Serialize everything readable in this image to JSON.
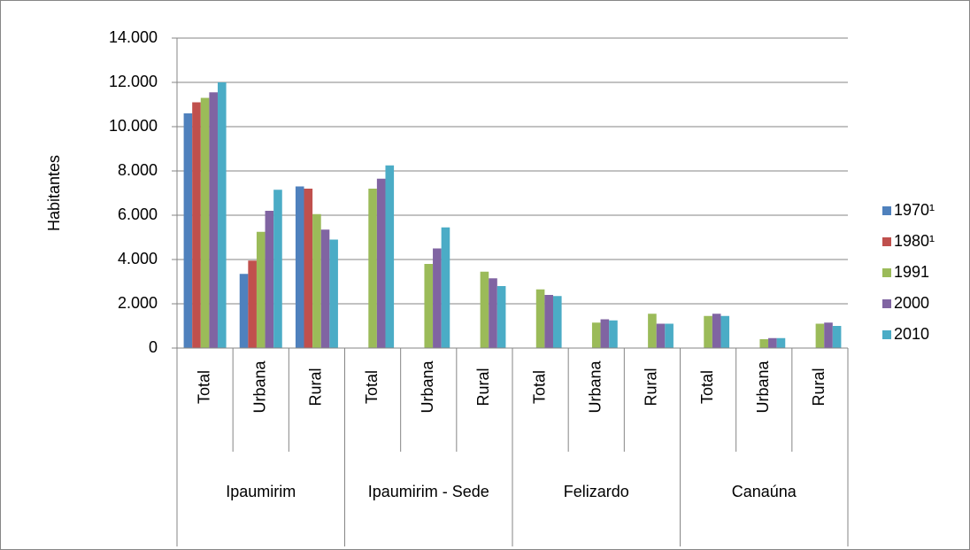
{
  "chart_data": {
    "type": "bar",
    "y_label": "Habitantes",
    "groups": [
      {
        "name": "Ipaumirim",
        "categories": [
          "Total",
          "Urbana",
          "Rural"
        ]
      },
      {
        "name": "Ipaumirim - Sede",
        "categories": [
          "Total",
          "Urbana",
          "Rural"
        ]
      },
      {
        "name": "Felizardo",
        "categories": [
          "Total",
          "Urbana",
          "Rural"
        ]
      },
      {
        "name": "Canaúna",
        "categories": [
          "Total",
          "Urbana",
          "Rural"
        ]
      }
    ],
    "series": [
      {
        "name": "1970¹",
        "color": "#4f81bd",
        "values": [
          10600,
          3350,
          7300,
          null,
          null,
          null,
          null,
          null,
          null,
          null,
          null,
          null
        ]
      },
      {
        "name": "1980¹",
        "color": "#c0504d",
        "values": [
          11100,
          3950,
          7200,
          null,
          null,
          null,
          null,
          null,
          null,
          null,
          null,
          null
        ]
      },
      {
        "name": "1991",
        "color": "#9bbb59",
        "values": [
          11300,
          5250,
          6050,
          7200,
          3800,
          3450,
          2650,
          1150,
          1550,
          1450,
          400,
          1100
        ]
      },
      {
        "name": "2000",
        "color": "#8064a2",
        "values": [
          11550,
          6200,
          5350,
          7650,
          4500,
          3150,
          2400,
          1300,
          1100,
          1550,
          450,
          1150
        ]
      },
      {
        "name": "2010",
        "color": "#4bacc6",
        "values": [
          12000,
          7150,
          4900,
          8250,
          5450,
          2800,
          2350,
          1250,
          1100,
          1450,
          450,
          1000
        ]
      }
    ],
    "ylim": [
      0,
      14000
    ],
    "yticks": [
      0,
      {
        "value": 2000,
        "label": "2.000"
      },
      {
        "value": 4000,
        "label": "4.000"
      },
      {
        "value": 6000,
        "label": "6.000"
      },
      {
        "value": 8000,
        "label": "8.000"
      },
      {
        "value": 10000,
        "label": "10.000"
      },
      {
        "value": 12000,
        "label": "12.000"
      },
      {
        "value": 14000,
        "label": "14.000"
      }
    ],
    "grid": true,
    "legend": "right"
  }
}
